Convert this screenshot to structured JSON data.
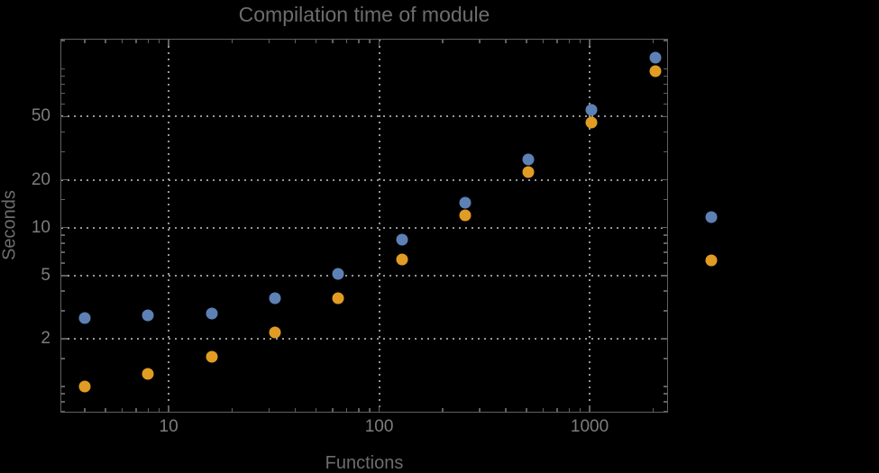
{
  "chart_data": {
    "type": "scatter",
    "title": "Compilation time of module",
    "xlabel": "Functions",
    "ylabel": "Seconds",
    "x_scale": "log",
    "y_scale": "log",
    "xlim": [
      3.09,
      2334
    ],
    "ylim": [
      0.695,
      152.4
    ],
    "x_tick_values": [
      10,
      100,
      1000
    ],
    "x_tick_labels": [
      "10",
      "100",
      "1000"
    ],
    "y_tick_values": [
      2,
      5,
      10,
      20,
      50
    ],
    "y_tick_labels": [
      "2",
      "5",
      "10",
      "20",
      "50"
    ],
    "grid": "dotted",
    "grid_x_values": [
      10,
      100,
      1000
    ],
    "grid_y_values": [
      2,
      5,
      10,
      20,
      50
    ],
    "x": [
      4,
      8,
      16,
      32,
      64,
      128,
      256,
      512,
      1024,
      2048
    ],
    "series": [
      {
        "name": "series-blue",
        "color": "#5e81b5",
        "values": [
          2.7,
          2.8,
          2.9,
          3.6,
          5.1,
          8.4,
          14.4,
          27,
          55,
          117
        ]
      },
      {
        "name": "series-orange",
        "color": "#e19c24",
        "values": [
          1.0,
          1.2,
          1.55,
          2.2,
          3.6,
          6.3,
          12,
          22.5,
          46,
          97
        ]
      }
    ],
    "legend": {
      "position": "right-outside",
      "markers": [
        {
          "series": "series-blue",
          "color": "#5e81b5"
        },
        {
          "series": "series-orange",
          "color": "#e19c24"
        }
      ]
    }
  },
  "colors": {
    "background": "#000000",
    "frame": "#606060",
    "grid": "#969696",
    "title_text": "#6d6d6d",
    "label_text": "#6d6d6d",
    "tick_text": "#7d7d7d"
  }
}
